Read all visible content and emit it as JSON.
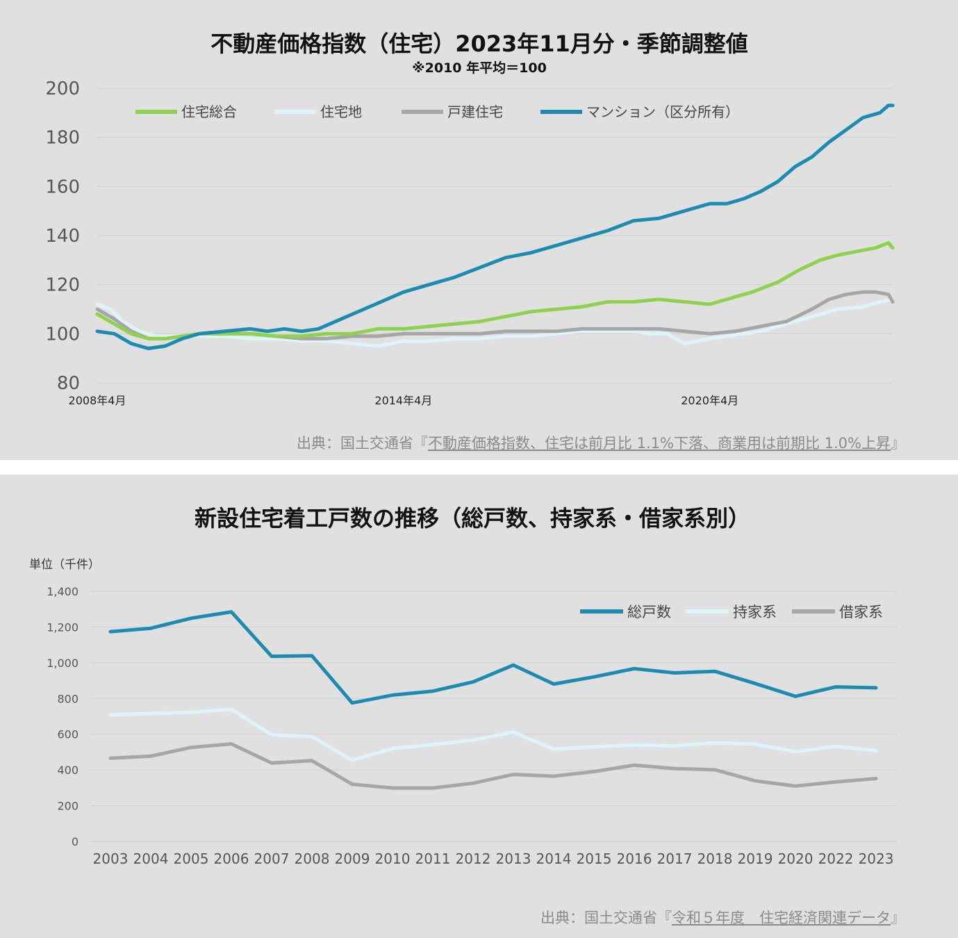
{
  "colors": {
    "panel_bg": "#e0e0e0",
    "grid": "#cfcfcf",
    "green": "#8fd14f",
    "light": "#dff3fa",
    "gray": "#a6a6a6",
    "blue": "#1d8ab0",
    "title": "#111111",
    "tick": "#555555",
    "source": "#8a8a8a"
  },
  "chart_data": [
    {
      "type": "line",
      "title": "不動産価格指数（住宅）2023年11月分・季節調整値",
      "subtitle": "※2010 年平均＝100",
      "x_tick_labels": [
        "2008年4月",
        "2014年4月",
        "2020年4月"
      ],
      "x_tick_months": [
        0,
        72,
        144
      ],
      "x_range_months": [
        0,
        187
      ],
      "ylim": [
        80,
        200
      ],
      "yticks": [
        "80",
        "100",
        "120",
        "140",
        "160",
        "180",
        "200"
      ],
      "grid": true,
      "legend_position": "top",
      "series": [
        {
          "name": "住宅総合",
          "color": "green",
          "x_months": [
            0,
            4,
            8,
            12,
            16,
            20,
            24,
            30,
            36,
            42,
            48,
            54,
            60,
            66,
            72,
            78,
            84,
            90,
            96,
            102,
            108,
            114,
            120,
            126,
            132,
            138,
            144,
            150,
            154,
            160,
            165,
            170,
            174,
            180,
            183,
            186,
            187
          ],
          "values": [
            108,
            104,
            100,
            98,
            98,
            99,
            100,
            100,
            100,
            99,
            99,
            100,
            100,
            102,
            102,
            103,
            104,
            105,
            107,
            109,
            110,
            111,
            113,
            113,
            114,
            113,
            112,
            115,
            117,
            121,
            126,
            130,
            132,
            134,
            135,
            137,
            135
          ]
        },
        {
          "name": "住宅地",
          "color": "light",
          "x_months": [
            0,
            3,
            6,
            10,
            14,
            18,
            24,
            30,
            36,
            42,
            48,
            54,
            60,
            66,
            72,
            78,
            84,
            90,
            96,
            102,
            108,
            114,
            120,
            126,
            130,
            134,
            138,
            144,
            148,
            152,
            156,
            160,
            166,
            170,
            174,
            180,
            184,
            187
          ],
          "values": [
            112,
            110,
            105,
            101,
            99,
            99,
            99,
            99,
            98,
            98,
            97,
            97,
            96,
            95,
            97,
            97,
            98,
            98,
            99,
            99,
            100,
            101,
            101,
            101,
            100,
            100,
            96,
            98,
            99,
            100,
            101,
            103,
            106,
            108,
            110,
            111,
            113,
            114
          ]
        },
        {
          "name": "戸建住宅",
          "color": "gray",
          "x_months": [
            0,
            4,
            8,
            12,
            16,
            20,
            24,
            30,
            36,
            42,
            48,
            54,
            60,
            66,
            72,
            78,
            84,
            90,
            96,
            102,
            108,
            114,
            120,
            126,
            132,
            138,
            144,
            150,
            156,
            162,
            168,
            172,
            176,
            180,
            183,
            186,
            187
          ],
          "values": [
            110,
            106,
            101,
            98,
            98,
            99,
            100,
            100,
            100,
            99,
            98,
            98,
            99,
            99,
            100,
            100,
            100,
            100,
            101,
            101,
            101,
            102,
            102,
            102,
            102,
            101,
            100,
            101,
            103,
            105,
            110,
            114,
            116,
            117,
            117,
            116,
            113
          ]
        },
        {
          "name": "マンション（区分所有）",
          "color": "blue",
          "x_months": [
            0,
            4,
            8,
            12,
            16,
            20,
            24,
            30,
            36,
            40,
            44,
            48,
            52,
            56,
            60,
            64,
            68,
            72,
            78,
            84,
            90,
            96,
            102,
            108,
            114,
            120,
            126,
            132,
            138,
            144,
            148,
            152,
            156,
            160,
            164,
            168,
            172,
            176,
            180,
            184,
            186,
            187
          ],
          "values": [
            101,
            100,
            96,
            94,
            95,
            98,
            100,
            101,
            102,
            101,
            102,
            101,
            102,
            105,
            108,
            111,
            114,
            117,
            120,
            123,
            127,
            131,
            133,
            136,
            139,
            142,
            146,
            147,
            150,
            153,
            153,
            155,
            158,
            162,
            168,
            172,
            178,
            183,
            188,
            190,
            193,
            193
          ]
        }
      ],
      "source": {
        "prefix": "出典：国土交通省『",
        "link": "不動産価格指数、住宅は前月比 1.1%下落、商業用は前期比 1.0%上昇",
        "suffix": "』"
      }
    },
    {
      "type": "line",
      "title": "新設住宅着工戸数の推移（総戸数、持家系・借家系別）",
      "unit_label": "単位（千件）",
      "categories": [
        "2003",
        "2004",
        "2005",
        "2006",
        "2007",
        "2008",
        "2009",
        "2010",
        "2011",
        "2012",
        "2013",
        "2014",
        "2015",
        "2016",
        "2017",
        "2018",
        "2019",
        "2020",
        "2022",
        "2023"
      ],
      "ylim": [
        0,
        1400
      ],
      "yticks": [
        "0",
        "200",
        "400",
        "600",
        "800",
        "1,000",
        "1,200",
        "1,400"
      ],
      "grid": true,
      "legend_position": "top-right",
      "series": [
        {
          "name": "総戸数",
          "color": "blue",
          "values": [
            1174,
            1193,
            1249,
            1285,
            1036,
            1039,
            775,
            819,
            841,
            893,
            987,
            881,
            921,
            967,
            943,
            952,
            884,
            812,
            865,
            860
          ]
        },
        {
          "name": "持家系",
          "color": "light",
          "values": [
            708,
            716,
            723,
            739,
            597,
            587,
            455,
            520,
            542,
            567,
            612,
            516,
            530,
            540,
            535,
            551,
            545,
            502,
            532,
            508
          ]
        },
        {
          "name": "借家系",
          "color": "gray",
          "values": [
            466,
            477,
            526,
            546,
            439,
            452,
            320,
            299,
            299,
            326,
            375,
            365,
            391,
            427,
            408,
            401,
            339,
            310,
            333,
            352
          ]
        }
      ],
      "source": {
        "prefix": "出典：国土交通省『",
        "link": "令和５年度　住宅経済関連データ",
        "suffix": "』"
      }
    }
  ]
}
